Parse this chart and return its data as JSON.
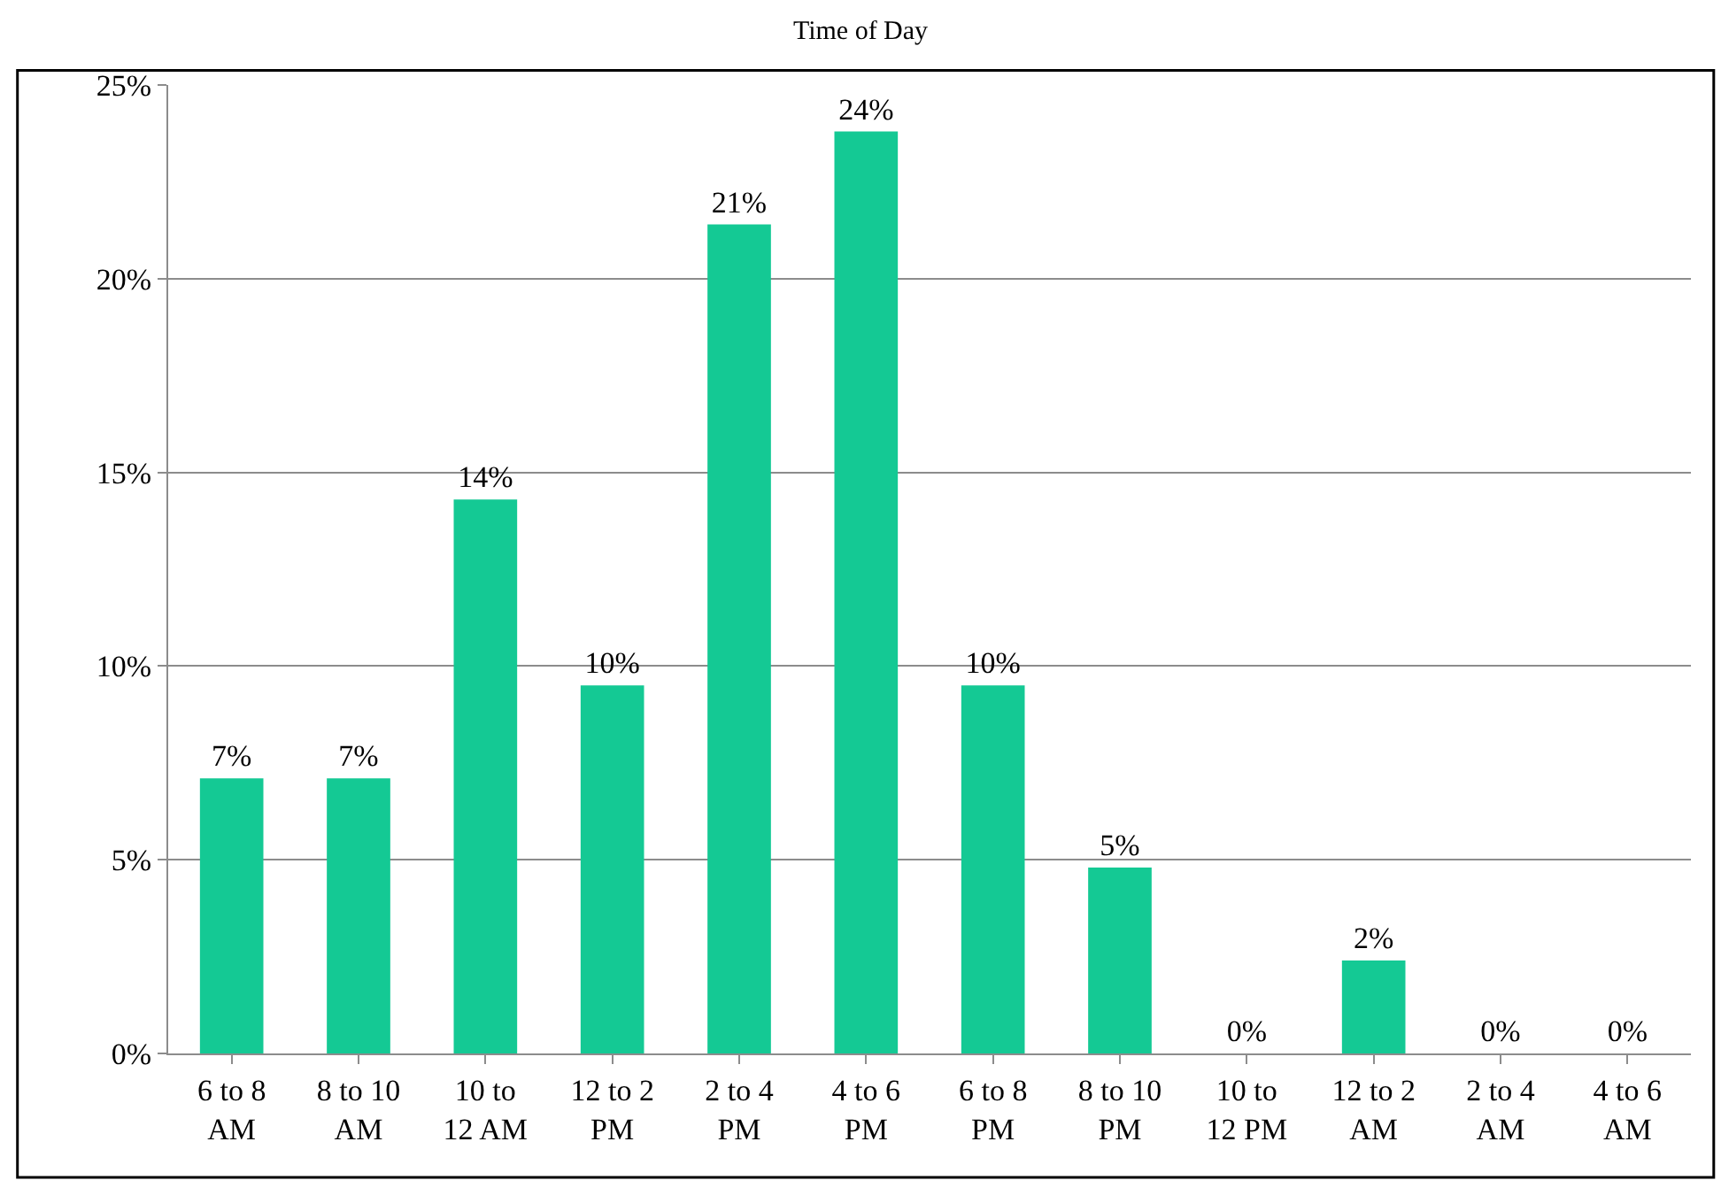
{
  "chart_data": {
    "type": "bar",
    "title": "Time of Day",
    "categories": [
      "6 to 8\nAM",
      "8 to 10\nAM",
      "10 to\n12 AM",
      "12 to 2\nPM",
      "2 to 4\nPM",
      "4 to 6\nPM",
      "6 to 8\nPM",
      "8 to 10\nPM",
      "10 to\n12 PM",
      "12 to 2\nAM",
      "2 to 4\nAM",
      "4 to 6\nAM"
    ],
    "values": [
      7.1,
      7.1,
      14.3,
      9.5,
      21.4,
      23.8,
      9.5,
      4.8,
      0,
      2.4,
      0,
      0
    ],
    "value_labels": [
      "7%",
      "7%",
      "14%",
      "10%",
      "21%",
      "24%",
      "10%",
      "5%",
      "0%",
      "2%",
      "0%",
      "0%"
    ],
    "color": "#14c994",
    "ylim": [
      0,
      25
    ],
    "yticks": [
      {
        "value": 0,
        "label": "0%"
      },
      {
        "value": 5,
        "label": "5%"
      },
      {
        "value": 10,
        "label": "10%"
      },
      {
        "value": 15,
        "label": "15%"
      },
      {
        "value": 20,
        "label": "20%"
      },
      {
        "value": 25,
        "label": "25%"
      }
    ],
    "grid": "y"
  }
}
